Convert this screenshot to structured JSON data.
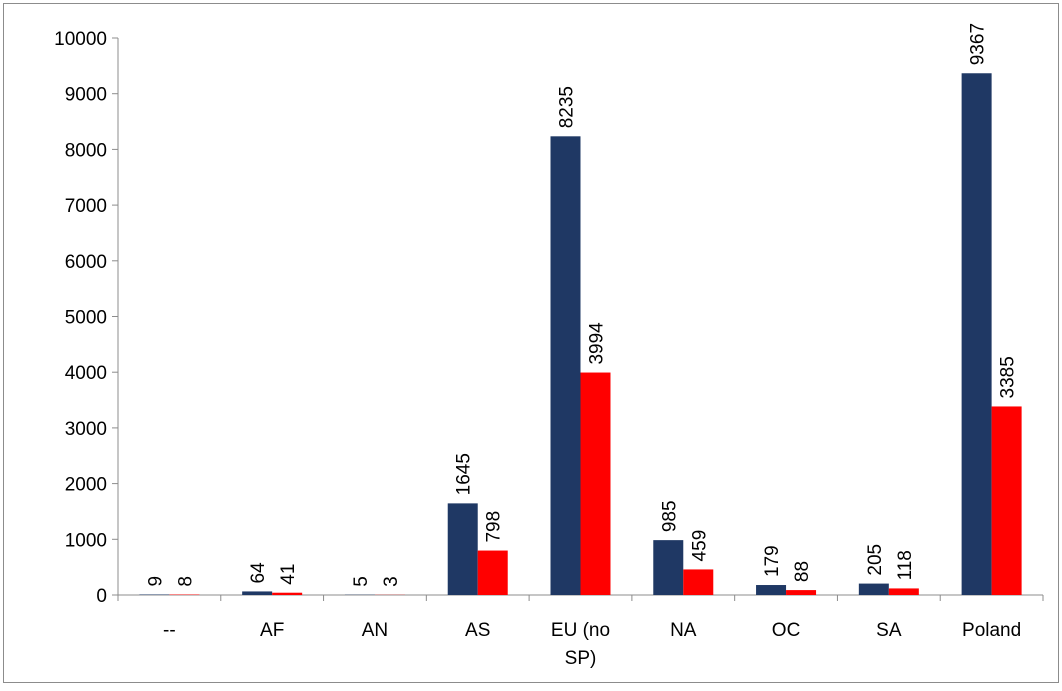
{
  "chart_data": {
    "type": "bar",
    "categories": [
      "--",
      "AF",
      "AN",
      "AS",
      "EU (no SP)",
      "NA",
      "OC",
      "SA",
      "Poland"
    ],
    "category_lines": [
      [
        "--"
      ],
      [
        "AF"
      ],
      [
        "AN"
      ],
      [
        "AS"
      ],
      [
        "EU (no",
        "SP)"
      ],
      [
        "NA"
      ],
      [
        "OC"
      ],
      [
        "SA"
      ],
      [
        "Poland"
      ]
    ],
    "series": [
      {
        "values": [
          9,
          64,
          5,
          1645,
          8235,
          985,
          179,
          205,
          9367
        ],
        "color": "#1F3864"
      },
      {
        "values": [
          8,
          41,
          3,
          798,
          3994,
          459,
          88,
          118,
          3385
        ],
        "color": "#FF0000"
      }
    ],
    "ylim": [
      0,
      10000
    ],
    "yticks": [
      0,
      1000,
      2000,
      3000,
      4000,
      5000,
      6000,
      7000,
      8000,
      9000,
      10000
    ],
    "title": "",
    "xlabel": "",
    "ylabel": "",
    "grid": false,
    "legend": "none",
    "data_labels": "rotated-vertical"
  }
}
